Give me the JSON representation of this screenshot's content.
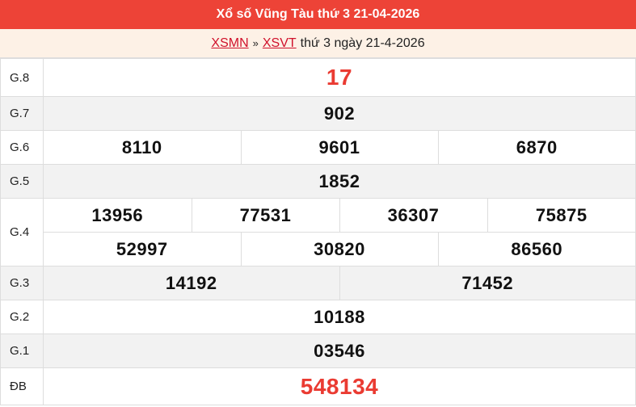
{
  "header": {
    "title": "Xổ số Vũng Tàu thứ 3 21-04-2026"
  },
  "breadcrumb": {
    "link1": "XSMN",
    "separator": "»",
    "link2": "XSVT",
    "text": "thứ 3 ngày 21-4-2026"
  },
  "colors": {
    "header_bg": "#ed4337",
    "subheader_bg": "#fdf1e6",
    "link": "#d0112b",
    "highlight": "#ea3b32"
  },
  "prizes": [
    {
      "label": "G.8",
      "numbers": [
        "17"
      ]
    },
    {
      "label": "G.7",
      "numbers": [
        "902"
      ]
    },
    {
      "label": "G.6",
      "numbers": [
        "8110",
        "9601",
        "6870"
      ]
    },
    {
      "label": "G.5",
      "numbers": [
        "1852"
      ]
    },
    {
      "label": "G.4",
      "row1": [
        "13956",
        "77531",
        "36307",
        "75875"
      ],
      "row2": [
        "52997",
        "30820",
        "86560"
      ]
    },
    {
      "label": "G.3",
      "numbers": [
        "14192",
        "71452"
      ]
    },
    {
      "label": "G.2",
      "numbers": [
        "10188"
      ]
    },
    {
      "label": "G.1",
      "numbers": [
        "03546"
      ]
    },
    {
      "label": "ĐB",
      "numbers": [
        "548134"
      ]
    }
  ]
}
